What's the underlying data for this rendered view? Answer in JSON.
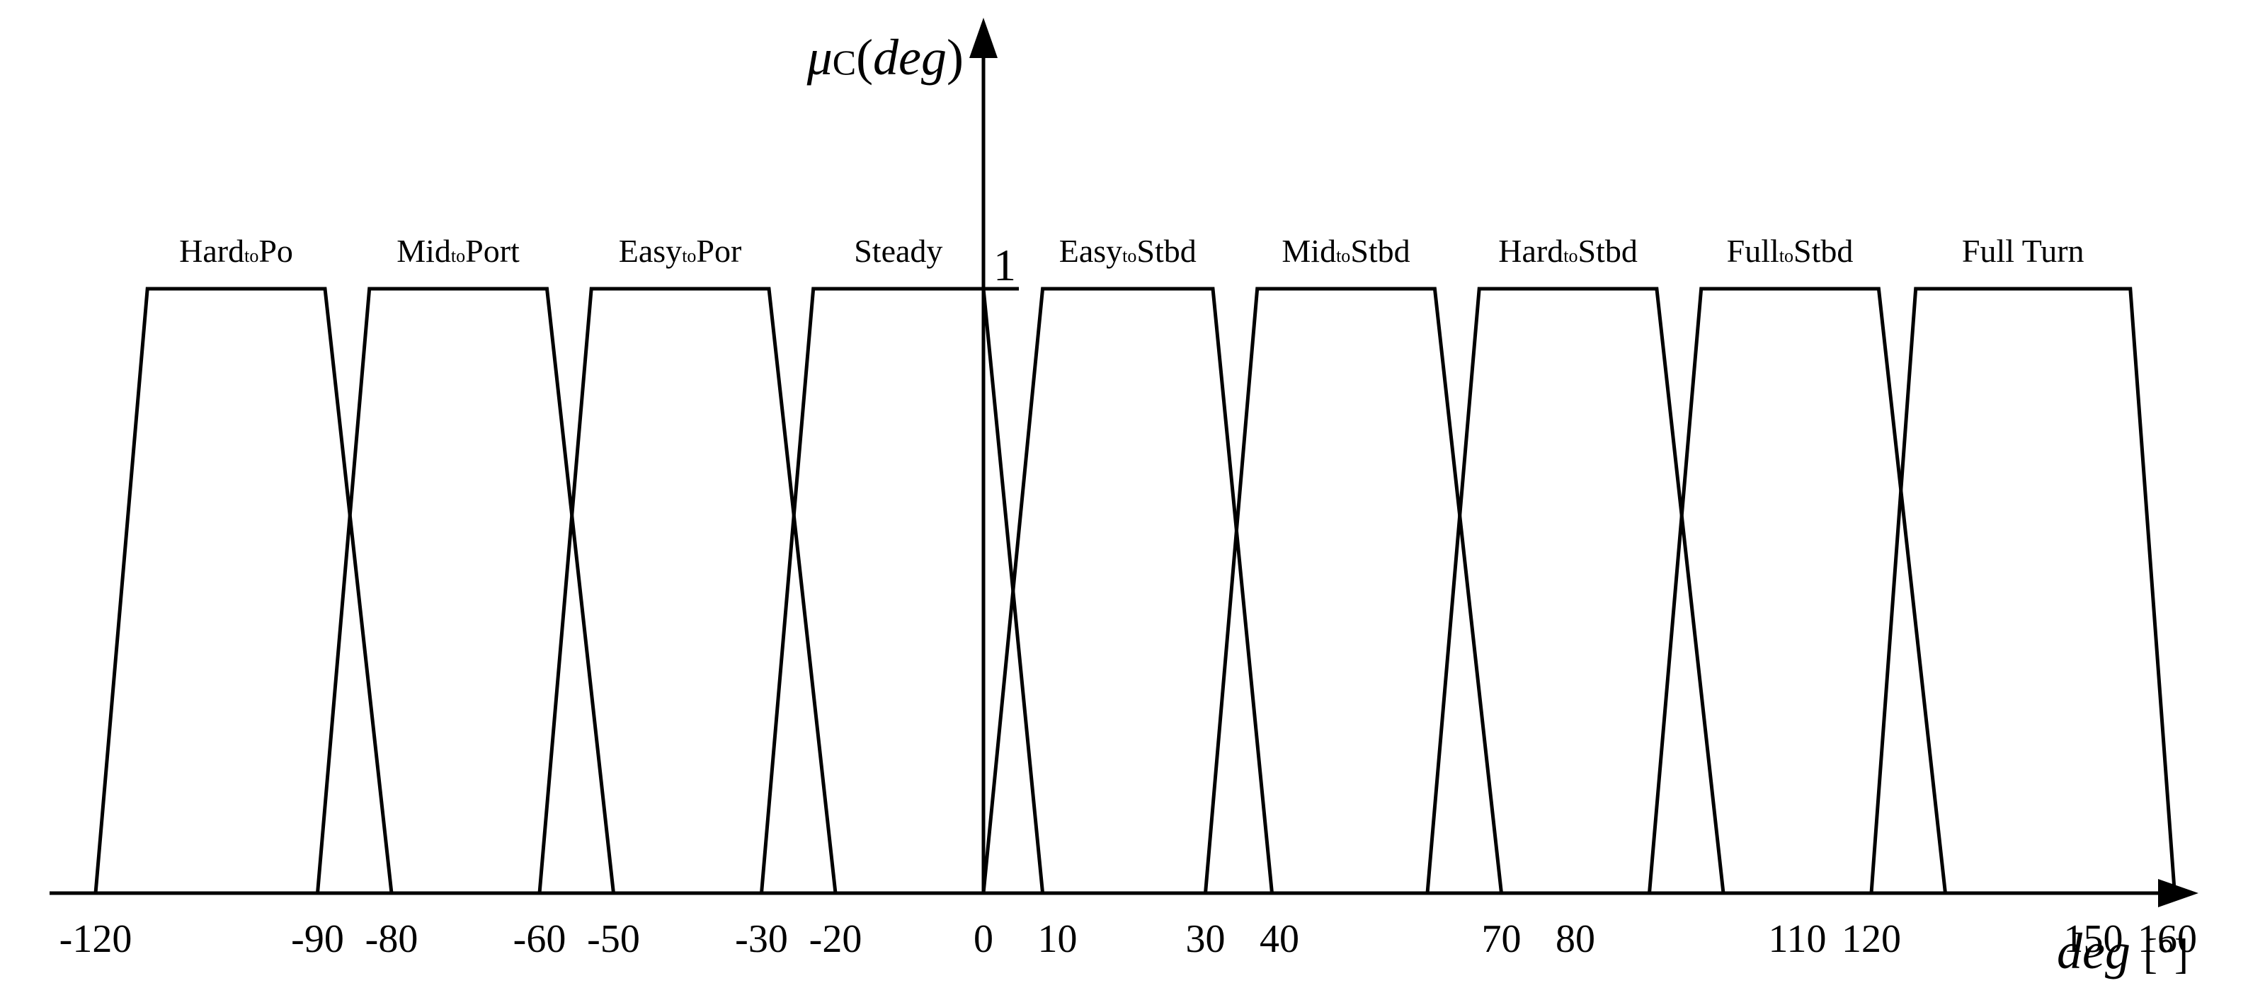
{
  "chart_data": {
    "type": "line",
    "title": "",
    "xlabel": {
      "var": "deg",
      "unit": "[°]"
    },
    "ylabel": {
      "mu": "μ",
      "sub": "C",
      "arg_open": "(",
      "var": "deg",
      "arg_close": ")"
    },
    "y_tick": "1",
    "x_ticks": [
      "-120",
      "-90",
      "-80",
      "-60",
      "-50",
      "-30",
      "-20",
      "0",
      "10",
      "30",
      "40",
      "70",
      "80",
      "110",
      "120",
      "150",
      "160"
    ],
    "x_tick_values": [
      -120,
      -90,
      -80,
      -60,
      -50,
      -30,
      -20,
      0,
      10,
      30,
      40,
      70,
      80,
      110,
      120,
      150,
      160
    ],
    "xlim": [
      -125,
      185
    ],
    "ylim": [
      0,
      1
    ],
    "grid": false,
    "legend": "none",
    "series": [
      {
        "label": {
          "a": "Hard",
          "sub": "to",
          "b": "Po"
        },
        "x": [
          -120,
          -113,
          -89,
          -80
        ],
        "y": [
          0,
          1,
          1,
          0
        ]
      },
      {
        "label": {
          "a": "Mid",
          "sub": "to",
          "b": "Port"
        },
        "x": [
          -90,
          -83,
          -59,
          -50
        ],
        "y": [
          0,
          1,
          1,
          0
        ]
      },
      {
        "label": {
          "a": "Easy",
          "sub": "to",
          "b": "Por"
        },
        "x": [
          -60,
          -53,
          -29,
          -20
        ],
        "y": [
          0,
          1,
          1,
          0
        ]
      },
      {
        "label": {
          "a": "Steady",
          "sub": "",
          "b": ""
        },
        "x": [
          -30,
          -23,
          0,
          8
        ],
        "y": [
          0,
          1,
          1,
          0
        ]
      },
      {
        "label": {
          "a": "Easy",
          "sub": "to",
          "b": "Stbd"
        },
        "x": [
          0,
          8,
          31,
          39
        ],
        "y": [
          0,
          1,
          1,
          0
        ]
      },
      {
        "label": {
          "a": "Mid",
          "sub": "to",
          "b": "Stbd"
        },
        "x": [
          30,
          37,
          61,
          70
        ],
        "y": [
          0,
          1,
          1,
          0
        ]
      },
      {
        "label": {
          "a": "Hard",
          "sub": "to",
          "b": "Stbd"
        },
        "x": [
          60,
          67,
          91,
          100
        ],
        "y": [
          0,
          1,
          1,
          0
        ]
      },
      {
        "label": {
          "a": "Full",
          "sub": "to",
          "b": "Stbd"
        },
        "x": [
          90,
          97,
          121,
          130
        ],
        "y": [
          0,
          1,
          1,
          0
        ]
      },
      {
        "label": {
          "a": "Full Turn",
          "sub": "",
          "b": ""
        },
        "x": [
          120,
          126,
          155,
          161
        ],
        "y": [
          0,
          1,
          1,
          0
        ]
      }
    ]
  }
}
